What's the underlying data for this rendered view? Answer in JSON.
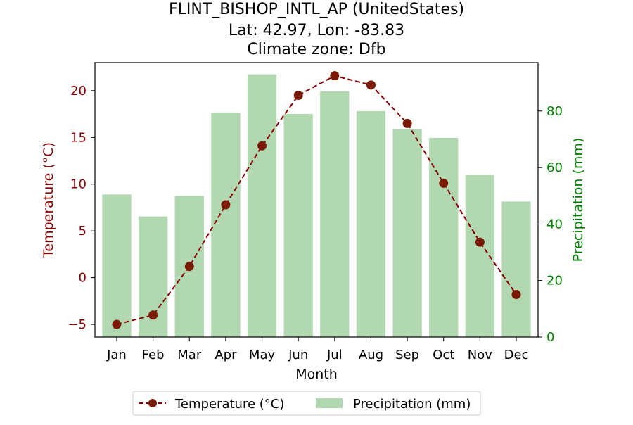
{
  "chart_data": {
    "type": "bar+line",
    "title_lines": [
      "FLINT_BISHOP_INTL_AP (UnitedStates)",
      "Lat: 42.97, Lon: -83.83",
      "Climate zone: Dfb"
    ],
    "xlabel": "Month",
    "ylabel_left": "Temperature (°C)",
    "ylabel_right": "Precipitation (mm)",
    "categories": [
      "Jan",
      "Feb",
      "Mar",
      "Apr",
      "May",
      "Jun",
      "Jul",
      "Aug",
      "Sep",
      "Oct",
      "Nov",
      "Dec"
    ],
    "temperature": {
      "name": "Temperature (°C)",
      "values": [
        -5.0,
        -4.0,
        1.2,
        7.8,
        14.1,
        19.5,
        21.6,
        20.6,
        16.5,
        10.1,
        3.8,
        -1.8
      ],
      "color": "#8b0000",
      "marker_color": "#7a1a00"
    },
    "precipitation": {
      "name": "Precipitation (mm)",
      "values": [
        50.5,
        42.7,
        50.0,
        79.5,
        93.0,
        79.0,
        87.0,
        80.0,
        73.5,
        70.5,
        57.5,
        48.0
      ],
      "color": "#b2d8b2"
    },
    "ylim_left": [
      -6.35,
      23.0
    ],
    "ylim_right": [
      0,
      97.15
    ],
    "yticks_left": [
      -5,
      0,
      5,
      10,
      15,
      20
    ],
    "yticks_right": [
      0,
      20,
      40,
      60,
      80
    ],
    "ytick_labels_left": [
      "−5",
      "0",
      "5",
      "10",
      "15",
      "20"
    ],
    "ytick_labels_right": [
      "0",
      "20",
      "40",
      "60",
      "80"
    ],
    "left_axis_color": "#8b0000",
    "right_axis_color": "#008000",
    "legend": {
      "position": "bottom-center",
      "entries": [
        "Temperature (°C)",
        "Precipitation (mm)"
      ]
    }
  }
}
